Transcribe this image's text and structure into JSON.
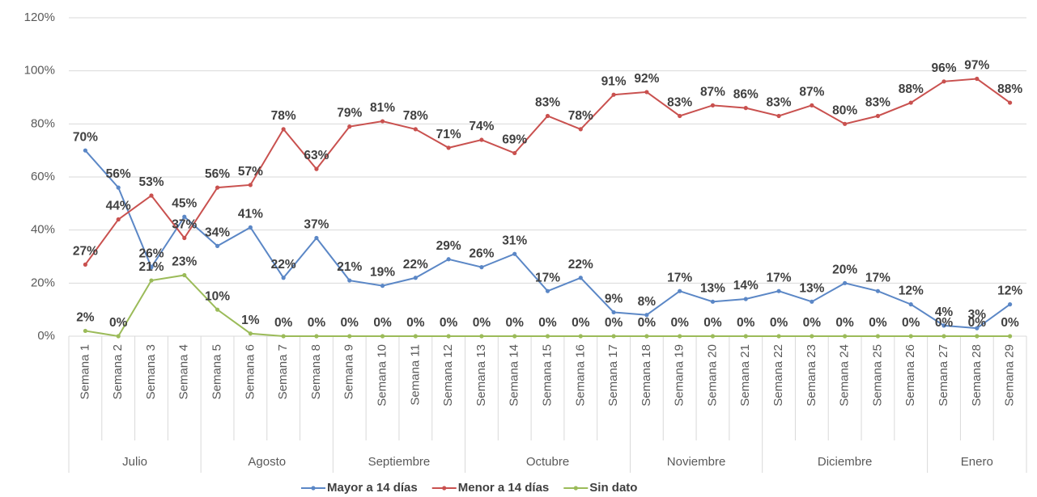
{
  "chart_data": {
    "type": "line",
    "categories": [
      "Semana 1",
      "Semana 2",
      "Semana 3",
      "Semana 4",
      "Semana 5",
      "Semana 6",
      "Semana 7",
      "Semana 8",
      "Semana 9",
      "Semana 10",
      "Semana 11",
      "Semana 12",
      "Semana 13",
      "Semana 14",
      "Semana 15",
      "Semana 16",
      "Semana 17",
      "Semana 18",
      "Semana 19",
      "Semana 20",
      "Semana 21",
      "Semana 22",
      "Semana 23",
      "Semana 24",
      "Semana 25",
      "Semana 26",
      "Semana 27",
      "Semana 28",
      "Semana 29"
    ],
    "groups": [
      {
        "name": "Julio",
        "size": 4
      },
      {
        "name": "Agosto",
        "size": 4
      },
      {
        "name": "Septiembre",
        "size": 4
      },
      {
        "name": "Octubre",
        "size": 5
      },
      {
        "name": "Noviembre",
        "size": 4
      },
      {
        "name": "Diciembre",
        "size": 5
      },
      {
        "name": "Enero",
        "size": 3
      }
    ],
    "series": [
      {
        "name": "Mayor a 14 días",
        "color": "#5b87c6",
        "values": [
          70,
          56,
          26,
          45,
          34,
          41,
          22,
          37,
          21,
          19,
          22,
          29,
          26,
          31,
          17,
          22,
          9,
          8,
          17,
          13,
          14,
          17,
          13,
          20,
          17,
          12,
          4,
          3,
          12
        ],
        "value_labels": [
          "70%",
          "56%",
          "26%",
          "45%",
          "34%",
          "41%",
          "22%",
          "37%",
          "21%",
          "19%",
          "22%",
          "29%",
          "26%",
          "31%",
          "17%",
          "22%",
          "9%",
          "8%",
          "17%",
          "13%",
          "14%",
          "17%",
          "13%",
          "20%",
          "17%",
          "12%",
          "4%",
          "3%",
          "12%"
        ]
      },
      {
        "name": "Menor a 14 días",
        "color": "#c9514f",
        "values": [
          27,
          44,
          53,
          37,
          56,
          57,
          78,
          63,
          79,
          81,
          78,
          71,
          74,
          69,
          83,
          78,
          91,
          92,
          83,
          87,
          86,
          83,
          87,
          80,
          83,
          88,
          96,
          97,
          88
        ],
        "value_labels": [
          "27%",
          "44%",
          "53%",
          "37%",
          "56%",
          "57%",
          "78%",
          "63%",
          "79%",
          "81%",
          "78%",
          "71%",
          "74%",
          "69%",
          "83%",
          "78%",
          "91%",
          "92%",
          "83%",
          "87%",
          "86%",
          "83%",
          "87%",
          "80%",
          "83%",
          "88%",
          "96%",
          "97%",
          "88%"
        ]
      },
      {
        "name": "Sin dato",
        "color": "#9bbb59",
        "values": [
          2,
          0,
          21,
          23,
          10,
          1,
          0,
          0,
          0,
          0,
          0,
          0,
          0,
          0,
          0,
          0,
          0,
          0,
          0,
          0,
          0,
          0,
          0,
          0,
          0,
          0,
          0,
          0,
          0
        ],
        "value_labels": [
          "2%",
          "0%",
          "21%",
          "23%",
          "10%",
          "1%",
          "0%",
          "0%",
          "0%",
          "0%",
          "0%",
          "0%",
          "0%",
          "0%",
          "0%",
          "0%",
          "0%",
          "0%",
          "0%",
          "0%",
          "0%",
          "0%",
          "0%",
          "0%",
          "0%",
          "0%",
          "0%",
          "0%",
          "0%"
        ]
      }
    ],
    "ylim": [
      0,
      120
    ],
    "yticks": [
      {
        "value": 0,
        "label": "0%"
      },
      {
        "value": 20,
        "label": "20%"
      },
      {
        "value": 40,
        "label": "40%"
      },
      {
        "value": 60,
        "label": "60%"
      },
      {
        "value": 80,
        "label": "80%"
      },
      {
        "value": 100,
        "label": "100%"
      },
      {
        "value": 120,
        "label": "120%"
      }
    ],
    "grid": true,
    "legend": "bottom"
  }
}
